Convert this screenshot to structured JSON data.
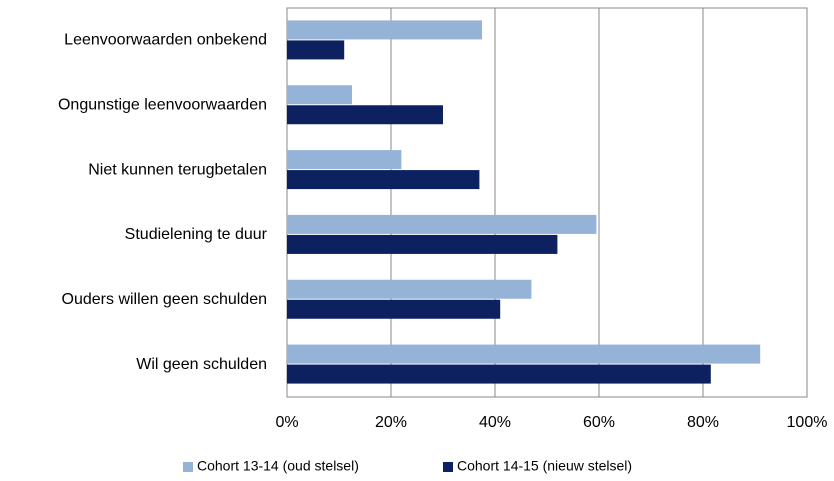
{
  "chart_data": {
    "type": "barh",
    "categories": [
      "Leenvoorwaarden onbekend",
      "Ongunstige leenvoorwaarden",
      "Niet kunnen terugbetalen",
      "Studielening te duur",
      "Ouders willen geen schulden",
      "Wil geen schulden"
    ],
    "series": [
      {
        "name": "Cohort 13-14 (oud stelsel)",
        "color": "#95b3d7",
        "values": [
          37.5,
          12.5,
          22,
          59.5,
          47,
          91
        ]
      },
      {
        "name": "Cohort 14-15 (nieuw stelsel)",
        "color": "#0d2160",
        "values": [
          11,
          30,
          37,
          52,
          41,
          81.5
        ]
      }
    ],
    "xlim": [
      0,
      100
    ],
    "xticks": [
      {
        "value": 0,
        "label": "0%"
      },
      {
        "value": 20,
        "label": "20%"
      },
      {
        "value": 40,
        "label": "40%"
      },
      {
        "value": 60,
        "label": "60%"
      },
      {
        "value": 80,
        "label": "80%"
      },
      {
        "value": 100,
        "label": "100%"
      }
    ],
    "grid": true,
    "legend": "bottom"
  }
}
